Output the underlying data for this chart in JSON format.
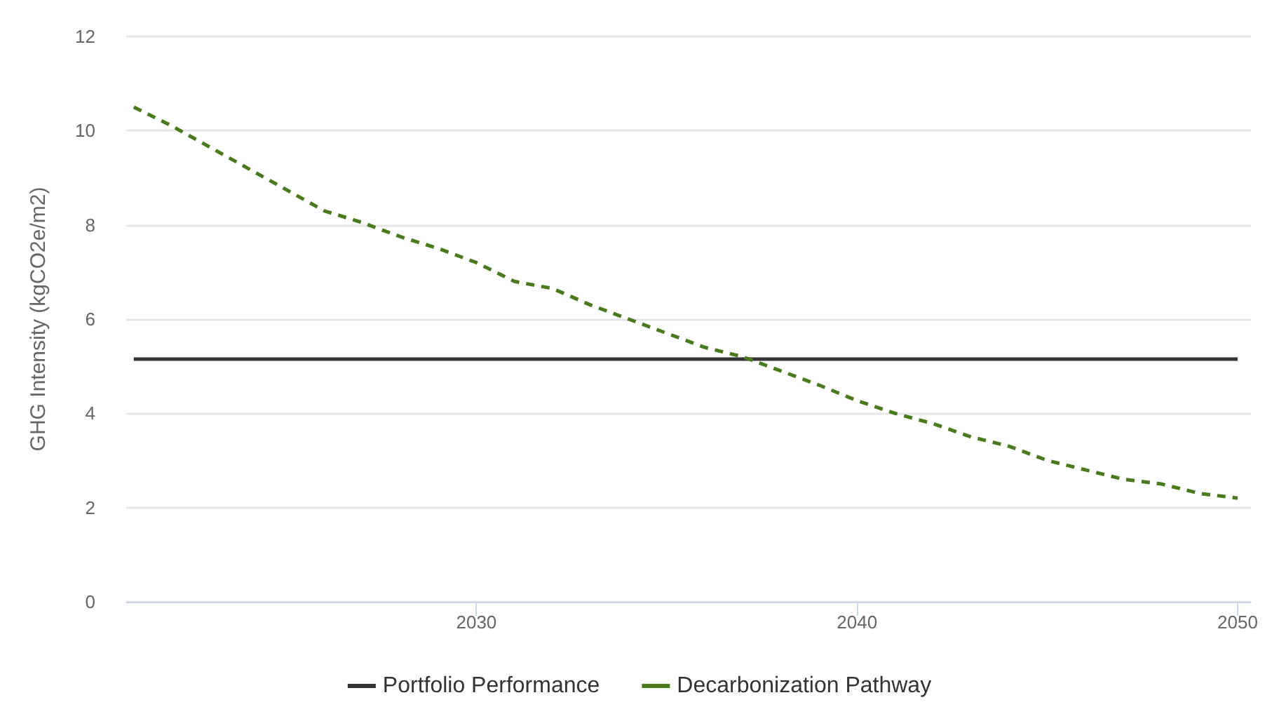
{
  "chart_data": {
    "type": "line",
    "ylabel": "GHG Intensity (kgCO2e/m2)",
    "xlim": [
      2020.8,
      2050.35
    ],
    "xticks": [
      2030,
      2040,
      2050
    ],
    "ylim": [
      0,
      12
    ],
    "yticks": [
      0,
      2,
      4,
      6,
      8,
      10,
      12
    ],
    "grid": "y",
    "legend": "bottom",
    "marker": "none",
    "series": [
      {
        "name": "Portfolio Performance",
        "color": "#333333",
        "line_style": "solid",
        "x": [
          2021,
          2050
        ],
        "values": [
          5.15,
          5.15
        ]
      },
      {
        "name": "Decarbonization Pathway",
        "color": "#4a7a1e",
        "line_style": "dashed",
        "x": [
          2021,
          2022,
          2023,
          2024,
          2025,
          2026,
          2027,
          2028,
          2029,
          2030,
          2031,
          2032,
          2033,
          2034,
          2035,
          2036,
          2037,
          2038,
          2039,
          2040,
          2041,
          2042,
          2043,
          2044,
          2045,
          2046,
          2047,
          2048,
          2049,
          2050
        ],
        "values": [
          10.5,
          10.1,
          9.65,
          9.2,
          8.75,
          8.3,
          8.05,
          7.75,
          7.5,
          7.2,
          6.8,
          6.65,
          6.3,
          6.0,
          5.7,
          5.4,
          5.2,
          4.9,
          4.6,
          4.27,
          4.0,
          3.78,
          3.5,
          3.3,
          3.0,
          2.8,
          2.6,
          2.5,
          2.3,
          2.2
        ]
      }
    ]
  }
}
